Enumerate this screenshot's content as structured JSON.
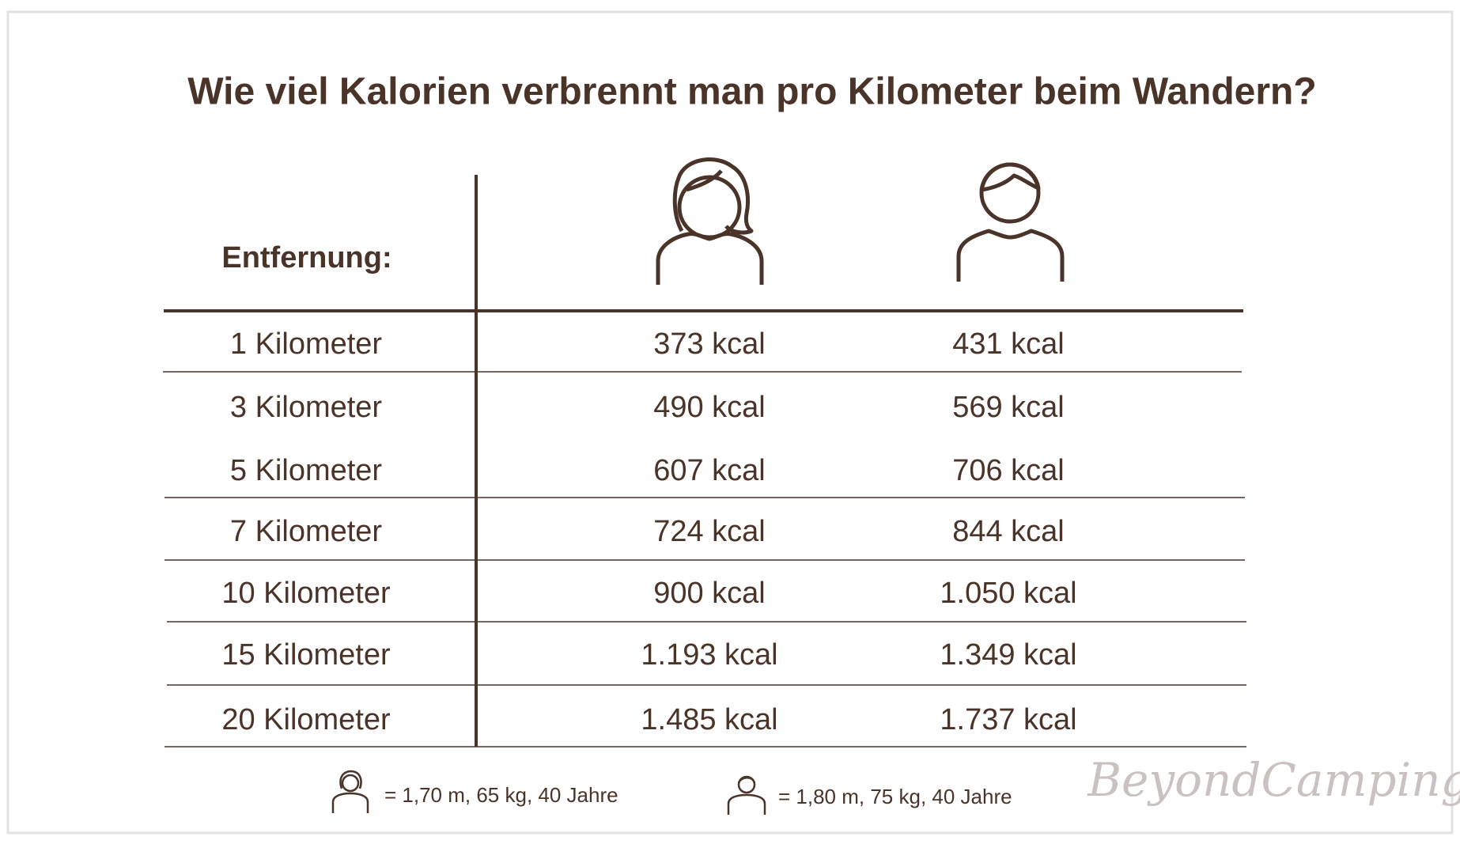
{
  "title": "Wie viel Kalorien verbrennt man pro Kilometer beim Wandern?",
  "table": {
    "header": "Entfernung:",
    "rows": [
      [
        "1 Kilometer",
        "373 kcal",
        "431 kcal"
      ],
      [
        "3 Kilometer",
        "490 kcal",
        "569 kcal"
      ],
      [
        "5 Kilometer",
        "607 kcal",
        "706 kcal"
      ],
      [
        "7 Kilometer",
        "724 kcal",
        "844 kcal"
      ],
      [
        "10 Kilometer",
        "900 kcal",
        "1.050 kcal"
      ],
      [
        "15 Kilometer",
        "1.193 kcal",
        "1.349 kcal"
      ],
      [
        "20 Kilometer",
        "1.485 kcal",
        "1.737 kcal"
      ]
    ]
  },
  "legend": [
    "= 1,70 m, 65 kg, 40 Jahre",
    "= 1,80 m, 75 kg, 40 Jahre"
  ],
  "brand": "BeyondCamping"
}
